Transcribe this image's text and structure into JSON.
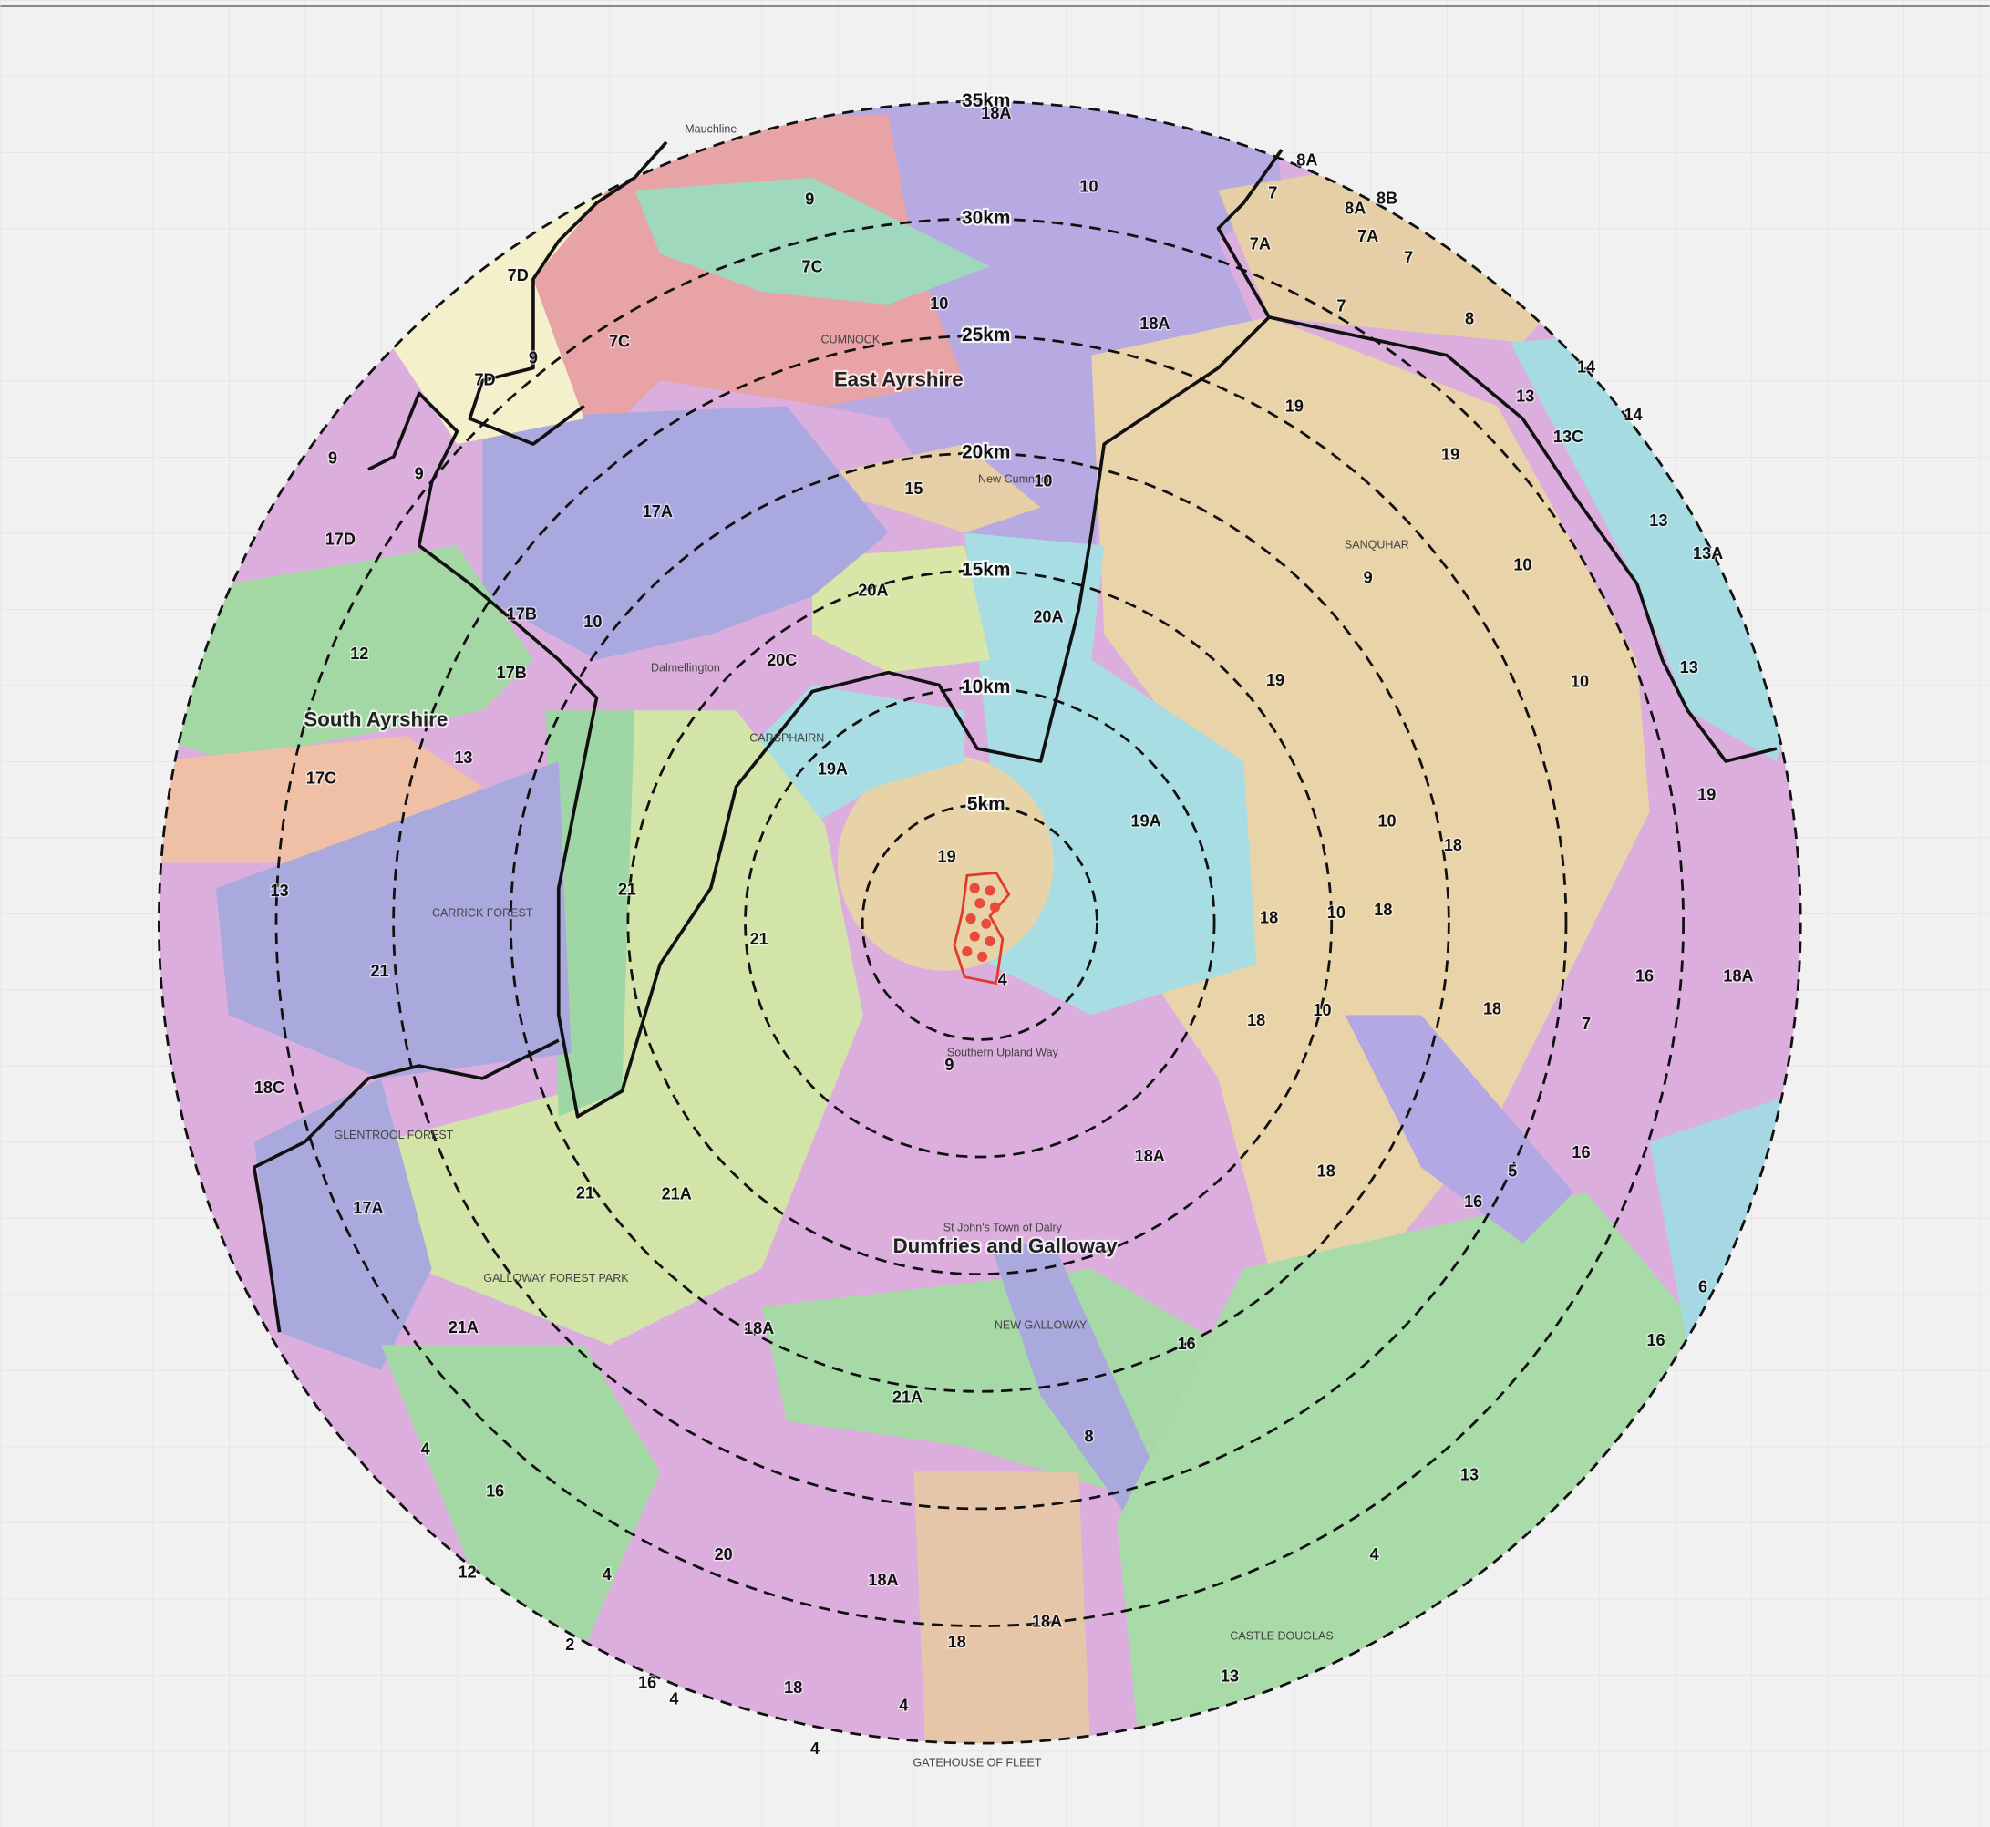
{
  "rings": [
    "35km",
    "30km",
    "25km",
    "20km",
    "15km",
    "10km",
    "5km"
  ],
  "regions": [
    "East Ayrshire",
    "South Ayrshire",
    "Dumfries and Galloway"
  ],
  "places": [
    "Mauchline",
    "CUMNOCK",
    "New Cumnock",
    "SANQUHAR",
    "CARSPHAIRN",
    "Dalmellington",
    "GALLOWAY FOREST PARK",
    "GLENTROOL FOREST",
    "CARRICK FOREST",
    "NEW GALLOWAY",
    "St John's Town of Dalry",
    "GATEHOUSE OF FLEET",
    "CASTLE DOUGLAS",
    "Southern Upland Way"
  ],
  "zones": [
    "18A",
    "8A",
    "7",
    "8A",
    "8B",
    "9",
    "10",
    "7A",
    "7",
    "7A",
    "7D",
    "7C",
    "10",
    "18A",
    "7",
    "8",
    "7C",
    "9",
    "7D",
    "14",
    "13",
    "14",
    "19",
    "13C",
    "9",
    "9",
    "15",
    "10",
    "19",
    "17A",
    "13",
    "13A",
    "17D",
    "10",
    "9",
    "20A",
    "20A",
    "17B",
    "10",
    "12",
    "20C",
    "13",
    "17B",
    "19",
    "10",
    "13",
    "17C",
    "19A",
    "19A",
    "19",
    "10",
    "19",
    "18",
    "21",
    "13",
    "18",
    "10",
    "18",
    "21",
    "16",
    "18A",
    "4",
    "21",
    "10",
    "18",
    "18",
    "7",
    "9",
    "18C",
    "18A",
    "16",
    "5",
    "21",
    "21A",
    "18",
    "17A",
    "16",
    "18A",
    "21A",
    "16",
    "6",
    "16",
    "21A",
    "8",
    "4",
    "13",
    "16",
    "20",
    "4",
    "12",
    "4",
    "18A",
    "18A",
    "2",
    "18",
    "16",
    "4",
    "18",
    "13",
    "4",
    "4"
  ]
}
